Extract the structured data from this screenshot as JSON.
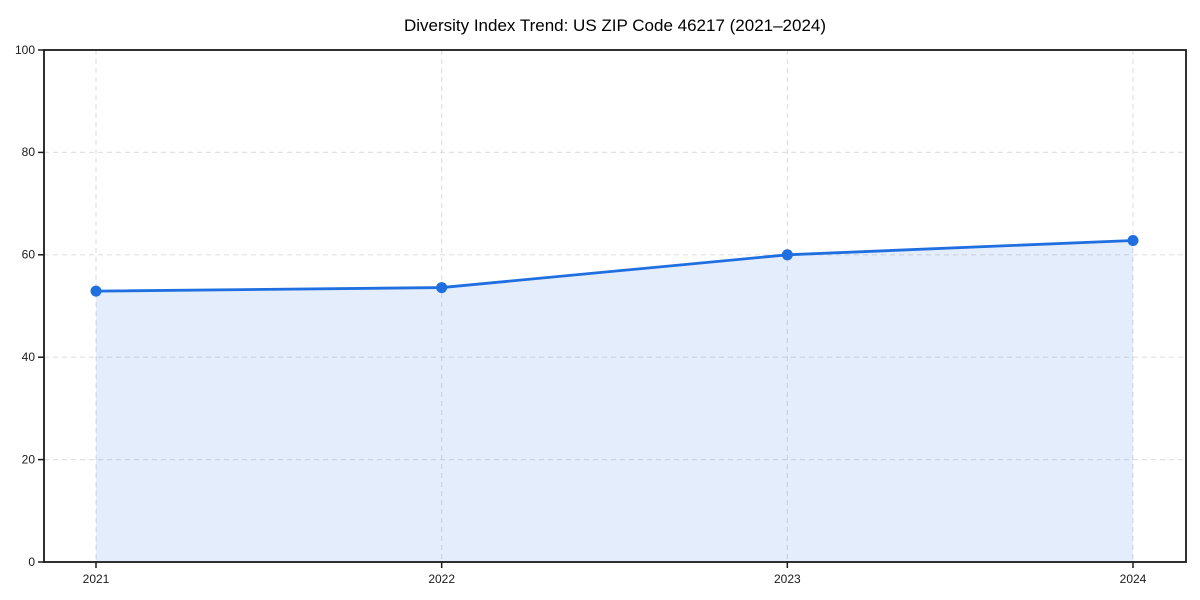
{
  "title": "Diversity Index Trend: US ZIP Code 46217 (2021–2024)",
  "chart_data": {
    "type": "area",
    "title": "Diversity Index Trend: US ZIP Code 46217 (2021–2024)",
    "categories": [
      "2021",
      "2022",
      "2023",
      "2024"
    ],
    "series": [
      {
        "name": "Diversity Index",
        "values": [
          52.9,
          53.6,
          60.0,
          62.8
        ]
      }
    ],
    "xlabel": "",
    "ylabel": "",
    "ylim": [
      0,
      100
    ],
    "yticks": [
      0,
      20,
      40,
      60,
      80,
      100
    ],
    "grid": true,
    "grid_style": "dashed",
    "legend": "none",
    "colors": {
      "line": "#1f6fe0",
      "marker": "#1f6fe0",
      "fill": "#1f6fe0",
      "fill_opacity": 0.12,
      "grid": "#e1e1e1",
      "axis": "#1a1a1a",
      "background": "#ffffff"
    }
  }
}
